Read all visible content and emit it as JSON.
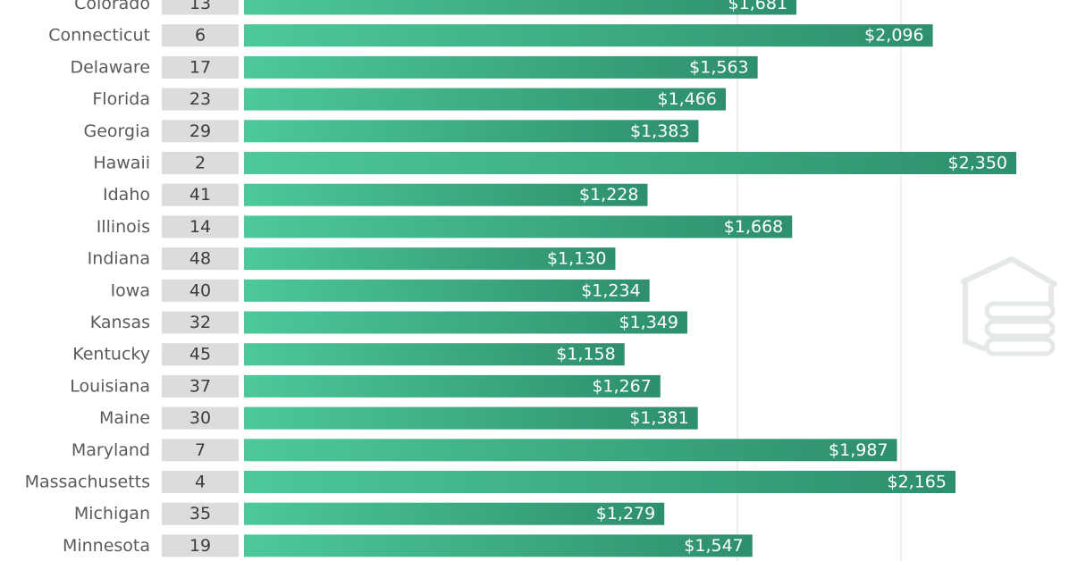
{
  "chart_data": {
    "type": "bar",
    "orientation": "horizontal",
    "categories": [
      "Colorado",
      "Connecticut",
      "Delaware",
      "Florida",
      "Georgia",
      "Hawaii",
      "Idaho",
      "Illinois",
      "Indiana",
      "Iowa",
      "Kansas",
      "Kentucky",
      "Louisiana",
      "Maine",
      "Maryland",
      "Massachusetts",
      "Michigan",
      "Minnesota"
    ],
    "ranks": [
      "13",
      "6",
      "17",
      "23",
      "29",
      "2",
      "41",
      "14",
      "48",
      "40",
      "32",
      "45",
      "37",
      "30",
      "7",
      "4",
      "35",
      "19"
    ],
    "values": [
      1681,
      2096,
      1563,
      1466,
      1383,
      2350,
      1228,
      1668,
      1130,
      1234,
      1349,
      1158,
      1267,
      1381,
      1987,
      2165,
      1279,
      1547
    ],
    "value_labels": [
      "$1,681",
      "$2,096",
      "$1,563",
      "$1,466",
      "$1,383",
      "$2,350",
      "$1,228",
      "$1,668",
      "$1,130",
      "$1,234",
      "$1,349",
      "$1,158",
      "$1,267",
      "$1,381",
      "$1,987",
      "$2,165",
      "$1,279",
      "$1,547"
    ],
    "xlim": [
      0,
      2350
    ],
    "grid": true,
    "colors": {
      "bar_light": "#4cc99a",
      "bar_dark": "#2e8f6c",
      "rank_box": "#dcdcdc",
      "gridline": "#e8e8e8",
      "watermark": "#cfd6d2"
    },
    "icons": [
      "house-money-watermark-icon"
    ]
  }
}
